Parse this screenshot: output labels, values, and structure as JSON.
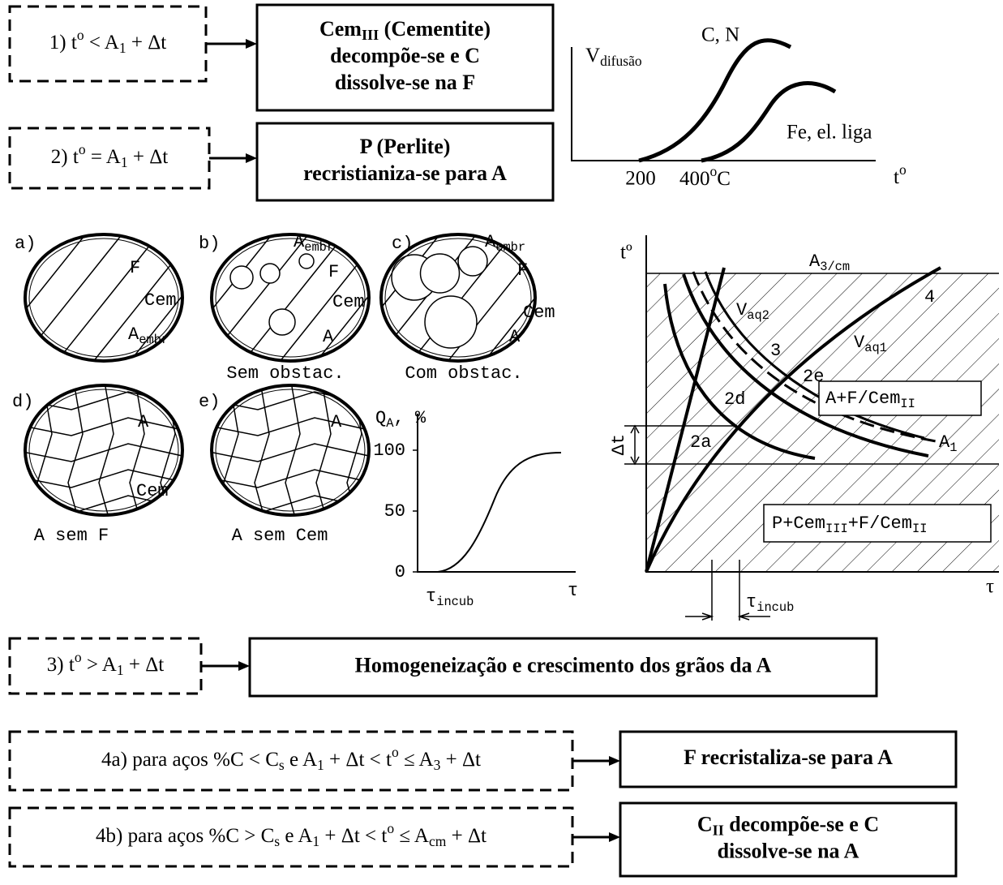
{
  "steps": [
    {
      "condition": [
        [
          "1) t",
          {
            "sup": "o"
          },
          " < A",
          {
            "sub": "1"
          },
          " + Δt"
        ]
      ],
      "result": [
        [
          "Cem",
          {
            "sub": "III"
          },
          " (Cementite)"
        ],
        [
          "decompõe-se e C"
        ],
        [
          "dissolve-se na F"
        ]
      ]
    },
    {
      "condition": [
        [
          "2) t",
          {
            "sup": "o"
          },
          " = A",
          {
            "sub": "1"
          },
          " + Δt"
        ]
      ],
      "result": [
        [
          "P (Perlite)"
        ],
        [
          "recristianiza-se para A"
        ]
      ]
    },
    {
      "condition": [
        [
          "3) t",
          {
            "sup": "o"
          },
          " > A",
          {
            "sub": "1"
          },
          " + Δt"
        ]
      ],
      "result": [
        [
          "Homogeneização e crescimento dos grãos da A"
        ]
      ]
    },
    {
      "condition": [
        [
          "4a) para aços %C < C",
          {
            "sub": "s"
          },
          " e A",
          {
            "sub": "1"
          },
          " + Δt < t",
          {
            "sup": "o"
          },
          " ≤ A",
          {
            "sub": "3"
          },
          " + Δt"
        ]
      ],
      "result": [
        [
          "F recristaliza-se para A"
        ]
      ]
    },
    {
      "condition": [
        [
          "4b) para aços %C > C",
          {
            "sub": "s"
          },
          " e A",
          {
            "sub": "1"
          },
          " + Δt < t",
          {
            "sup": "o"
          },
          " ≤ A",
          {
            "sub": "cm"
          },
          " + Δt"
        ]
      ],
      "result": [
        [
          "C",
          {
            "sub": "II"
          },
          " decompõe-se e C"
        ],
        [
          "dissolve-se na A"
        ]
      ]
    }
  ],
  "diffusion_graph": {
    "y_label": [
      "V",
      {
        "sub": "difusão"
      }
    ],
    "curve_labels": [
      "C, N",
      "Fe, el. liga"
    ],
    "x_ticks": [
      "200",
      [
        "400",
        {
          "sup": "o"
        },
        "C"
      ]
    ],
    "x_label": [
      "t",
      {
        "sup": "o"
      }
    ]
  },
  "microstructures": [
    {
      "tag": "a)",
      "labels": [
        "F",
        "Cem",
        [
          "A",
          {
            "sub": "embr"
          }
        ]
      ]
    },
    {
      "tag": "b)",
      "labels": [
        [
          "A",
          {
            "sub": "embr"
          }
        ],
        "F",
        "Cem",
        "A"
      ],
      "caption": "Sem obstac."
    },
    {
      "tag": "c)",
      "labels": [
        [
          "A",
          {
            "sub": "embr"
          }
        ],
        "F",
        "Cem",
        "A"
      ],
      "caption": "Com obstac."
    },
    {
      "tag": "d)",
      "labels": [
        "A",
        "Cem"
      ],
      "caption": "A sem F"
    },
    {
      "tag": "e)",
      "labels": [
        "A"
      ],
      "caption": "A sem Cem"
    }
  ],
  "austenite_fraction_graph": {
    "y_label": [
      "Q",
      {
        "sub": "A"
      },
      ", %"
    ],
    "ylim": [
      0,
      130
    ],
    "yticks": [
      0,
      50,
      100
    ],
    "x_labels": [
      [
        "τ",
        {
          "sub": "incub"
        }
      ],
      "τ"
    ]
  },
  "tta_diagram": {
    "y_label": "tº",
    "x_label": "τ",
    "labels": [
      [
        "A",
        {
          "sub": "3/cm"
        }
      ],
      "4",
      [
        "V",
        {
          "sub": "aq2"
        }
      ],
      [
        "V",
        {
          "sub": "aq1"
        }
      ],
      "3",
      "2e",
      "2d",
      "2a",
      "Δt",
      [
        "A+F/Cem",
        {
          "sub": "II"
        }
      ],
      [
        "A",
        {
          "sub": "1"
        }
      ],
      [
        "P+Cem",
        {
          "sub": "III"
        },
        "+F/Cem",
        {
          "sub": "II"
        }
      ],
      [
        "τ",
        {
          "sub": "incub"
        }
      ]
    ]
  }
}
